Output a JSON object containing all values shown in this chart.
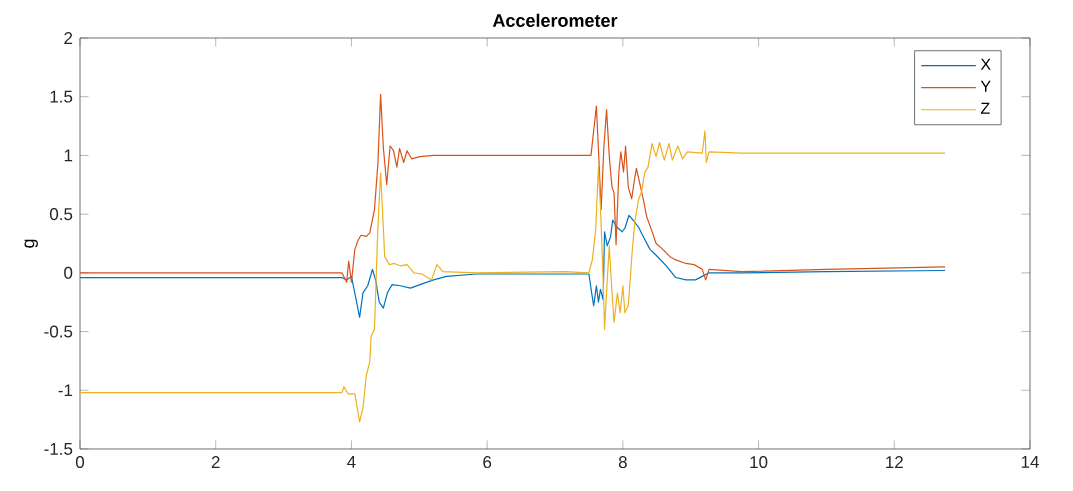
{
  "chart_data": {
    "type": "line",
    "title": "Accelerometer",
    "ylabel": "g",
    "xlim": [
      0,
      14
    ],
    "ylim": [
      -1.5,
      2
    ],
    "xticks": [
      0,
      2,
      4,
      6,
      8,
      10,
      12,
      14
    ],
    "yticks": [
      -1.5,
      -1,
      -0.5,
      0,
      0.5,
      1,
      1.5,
      2
    ],
    "legend": "top right",
    "series": [
      {
        "name": "X",
        "color": "#0072bd",
        "x": [
          0,
          3.86,
          3.93,
          4.0,
          4.07,
          4.12,
          4.17,
          4.24,
          4.31,
          4.36,
          4.41,
          4.47,
          4.53,
          4.6,
          4.72,
          4.87,
          5.01,
          5.21,
          5.4,
          5.84,
          6.5,
          7.14,
          7.5,
          7.54,
          7.57,
          7.61,
          7.64,
          7.67,
          7.71,
          7.73,
          7.77,
          7.82,
          7.85,
          7.91,
          7.99,
          8.03,
          8.09,
          8.15,
          8.23,
          8.3,
          8.4,
          8.49,
          8.64,
          8.78,
          8.93,
          9.07,
          9.17,
          9.27,
          9.75,
          11,
          12.75
        ],
        "values": [
          -0.04,
          -0.04,
          -0.06,
          -0.03,
          -0.23,
          -0.38,
          -0.17,
          -0.11,
          0.03,
          -0.07,
          -0.25,
          -0.3,
          -0.17,
          -0.1,
          -0.11,
          -0.13,
          -0.1,
          -0.06,
          -0.03,
          -0.01,
          -0.01,
          -0.01,
          -0.01,
          -0.17,
          -0.28,
          -0.11,
          -0.25,
          -0.14,
          -0.23,
          0.35,
          0.23,
          0.31,
          0.45,
          0.39,
          0.35,
          0.38,
          0.49,
          0.45,
          0.39,
          0.31,
          0.2,
          0.15,
          0.06,
          -0.04,
          -0.06,
          -0.06,
          -0.03,
          0,
          0,
          0.01,
          0.02
        ]
      },
      {
        "name": "Y",
        "color": "#d95319",
        "x": [
          0,
          3.86,
          3.93,
          3.96,
          4.0,
          4.05,
          4.1,
          4.14,
          4.22,
          4.27,
          4.34,
          4.39,
          4.43,
          4.47,
          4.52,
          4.57,
          4.62,
          4.67,
          4.71,
          4.77,
          4.82,
          4.89,
          5.01,
          5.21,
          5.84,
          7.14,
          7.53,
          7.57,
          7.61,
          7.65,
          7.68,
          7.72,
          7.76,
          7.8,
          7.84,
          7.87,
          7.9,
          7.94,
          7.97,
          8.01,
          8.04,
          8.08,
          8.13,
          8.17,
          8.2,
          8.25,
          8.3,
          8.35,
          8.42,
          8.49,
          8.59,
          8.69,
          8.78,
          8.93,
          9.05,
          9.17,
          9.22,
          9.27,
          9.75,
          11,
          12.75
        ],
        "values": [
          0,
          0,
          -0.08,
          0.1,
          -0.08,
          0.2,
          0.28,
          0.32,
          0.31,
          0.34,
          0.54,
          0.93,
          1.52,
          1.07,
          0.75,
          1.08,
          1.04,
          0.9,
          1.06,
          0.94,
          1.04,
          0.97,
          0.99,
          1.0,
          1.0,
          1.0,
          1.0,
          1.21,
          1.42,
          0.93,
          0.54,
          1.07,
          1.39,
          0.99,
          0.73,
          0.68,
          0.24,
          0.85,
          1.03,
          0.86,
          1.08,
          0.73,
          0.63,
          0.79,
          0.89,
          0.76,
          0.63,
          0.48,
          0.37,
          0.25,
          0.2,
          0.14,
          0.11,
          0.08,
          0.07,
          0.03,
          -0.06,
          0.03,
          0.01,
          0.03,
          0.05
        ]
      },
      {
        "name": "Z",
        "color": "#edb120",
        "x": [
          0,
          3.86,
          3.89,
          3.95,
          4.05,
          4.12,
          4.17,
          4.22,
          4.27,
          4.29,
          4.34,
          4.38,
          4.4,
          4.43,
          4.46,
          4.49,
          4.56,
          4.63,
          4.72,
          4.82,
          4.92,
          5.04,
          5.18,
          5.26,
          5.35,
          5.84,
          7.14,
          7.5,
          7.55,
          7.6,
          7.64,
          7.67,
          7.71,
          7.73,
          7.77,
          7.8,
          7.84,
          7.87,
          7.92,
          7.96,
          8.0,
          8.03,
          8.08,
          8.14,
          8.18,
          8.23,
          8.28,
          8.32,
          8.37,
          8.43,
          8.49,
          8.54,
          8.61,
          8.68,
          8.73,
          8.81,
          8.88,
          8.95,
          9.17,
          9.21,
          9.23,
          9.27,
          9.75,
          11,
          12.75
        ],
        "values": [
          -1.02,
          -1.02,
          -0.97,
          -1.03,
          -1.03,
          -1.27,
          -1.15,
          -0.87,
          -0.76,
          -0.54,
          -0.48,
          0.23,
          0.51,
          0.85,
          0.51,
          0.14,
          0.07,
          0.08,
          0.06,
          0.07,
          0,
          -0.01,
          -0.06,
          0.07,
          0.01,
          0,
          0.01,
          0,
          0.11,
          0.37,
          0.9,
          0.56,
          -0.06,
          -0.48,
          -0.06,
          0.23,
          -0.17,
          -0.42,
          -0.17,
          -0.34,
          -0.11,
          -0.34,
          -0.28,
          0.2,
          0.45,
          0.62,
          0.7,
          0.85,
          0.9,
          1.1,
          0.99,
          1.11,
          0.96,
          1.1,
          0.96,
          1.08,
          0.97,
          1.03,
          1.02,
          1.21,
          0.94,
          1.03,
          1.02,
          1.02,
          1.02
        ]
      }
    ]
  }
}
